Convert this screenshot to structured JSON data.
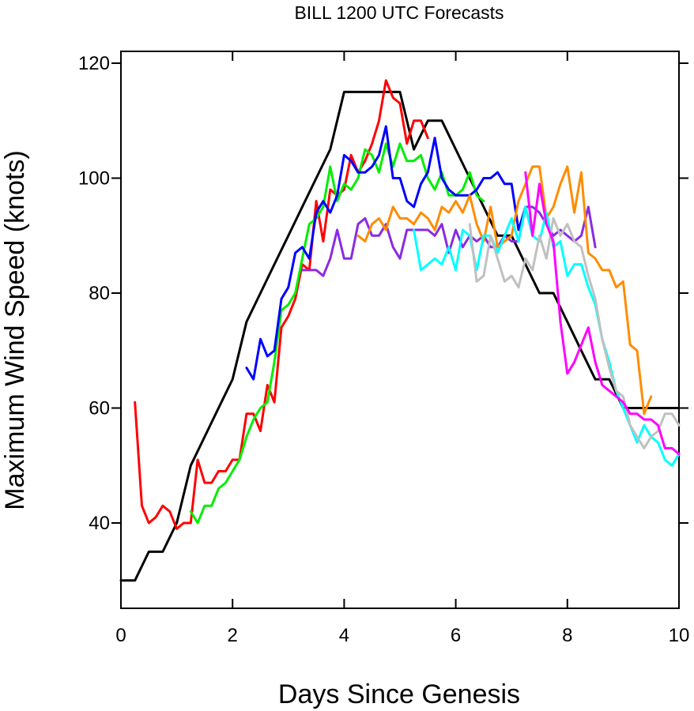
{
  "chart_data": {
    "type": "line",
    "title": "BILL 1200 UTC Forecasts",
    "xlabel": "Days Since Genesis",
    "ylabel": "Maximum Wind Speed (knots)",
    "xlim": [
      0,
      10
    ],
    "ylim": [
      25,
      122
    ],
    "xticks": [
      0,
      2,
      4,
      6,
      8,
      10
    ],
    "yticks": [
      40,
      60,
      80,
      100,
      120
    ],
    "grid": false,
    "legend": "none",
    "series": [
      {
        "color": "#000000",
        "x": [
          0,
          0.25,
          0.5,
          0.75,
          1.0,
          1.25,
          1.5,
          1.75,
          2.0,
          2.25,
          2.5,
          2.75,
          3.0,
          3.25,
          3.5,
          3.75,
          4.0,
          4.25,
          4.5,
          4.75,
          5.0,
          5.25,
          5.5,
          5.75,
          6.0,
          6.25,
          6.5,
          6.75,
          7.0,
          7.25,
          7.5,
          7.75,
          8.0,
          8.25,
          8.5,
          8.75,
          9.0,
          9.25,
          9.5,
          9.75,
          10.0
        ],
        "y": [
          30,
          30,
          35,
          35,
          40,
          50,
          55,
          60,
          65,
          75,
          80,
          85,
          90,
          95,
          100,
          105,
          115,
          115,
          115,
          115,
          115,
          105,
          110,
          110,
          105,
          100,
          95,
          90,
          90,
          85,
          80,
          80,
          75,
          70,
          65,
          65,
          60,
          60,
          60,
          60,
          60
        ]
      },
      {
        "color": "#ff0000",
        "x": [
          0.25,
          0.375,
          0.5,
          0.625,
          0.75,
          0.875,
          1.0,
          1.125,
          1.25,
          1.375,
          1.5,
          1.625,
          1.75,
          1.875,
          2.0,
          2.125,
          2.25,
          2.375,
          2.5,
          2.625,
          2.75,
          2.875,
          3.0,
          3.125,
          3.25,
          3.375,
          3.5,
          3.625,
          3.75,
          3.875,
          4.0,
          4.125,
          4.25,
          4.375,
          4.5,
          4.625,
          4.75,
          4.875,
          5.0,
          5.125,
          5.25,
          5.375,
          5.5
        ],
        "y": [
          61,
          43,
          40,
          41,
          43,
          42,
          39,
          40,
          40,
          51,
          47,
          47,
          49,
          49,
          51,
          51,
          59,
          59,
          56,
          64,
          61,
          74,
          76,
          79,
          85,
          84,
          96,
          89,
          98,
          97,
          98,
          104,
          101,
          103,
          106,
          110,
          117,
          114,
          113,
          106,
          110,
          110,
          107
        ]
      },
      {
        "color": "#00ee00",
        "x": [
          1.25,
          1.375,
          1.5,
          1.625,
          1.75,
          1.875,
          2.0,
          2.125,
          2.25,
          2.375,
          2.5,
          2.625,
          2.75,
          2.875,
          3.0,
          3.125,
          3.25,
          3.375,
          3.5,
          3.625,
          3.75,
          3.875,
          4.0,
          4.125,
          4.25,
          4.375,
          4.5,
          4.625,
          4.75,
          4.875,
          5.0,
          5.125,
          5.25,
          5.375,
          5.5,
          5.625,
          5.75,
          5.875,
          6.0,
          6.125,
          6.25,
          6.375,
          6.5
        ],
        "y": [
          42,
          40,
          43,
          43,
          46,
          47,
          49,
          51,
          55,
          58,
          60,
          61,
          68,
          77,
          78,
          80,
          86,
          92,
          93,
          95,
          102,
          96,
          99,
          98,
          100,
          105,
          104,
          101,
          106,
          102,
          106,
          103,
          103,
          104,
          100,
          98,
          101,
          97,
          97,
          98,
          101,
          97,
          96
        ]
      },
      {
        "color": "#0000ff",
        "x": [
          2.25,
          2.375,
          2.5,
          2.625,
          2.75,
          2.875,
          3.0,
          3.125,
          3.25,
          3.375,
          3.5,
          3.625,
          3.75,
          3.875,
          4.0,
          4.125,
          4.25,
          4.375,
          4.5,
          4.625,
          4.75,
          4.875,
          5.0,
          5.125,
          5.25,
          5.375,
          5.5,
          5.625,
          5.75,
          5.875,
          6.0,
          6.125,
          6.25,
          6.375,
          6.5,
          6.625,
          6.75,
          6.875,
          7.0,
          7.125,
          7.25
        ],
        "y": [
          67,
          65,
          72,
          69,
          70,
          79,
          81,
          87,
          88,
          86,
          94,
          96,
          94,
          97,
          104,
          103,
          101,
          101,
          102,
          104,
          109,
          100,
          100,
          96,
          95,
          99,
          101,
          107,
          100,
          98,
          97,
          97,
          97,
          98,
          100,
          100,
          101,
          99,
          99,
          91,
          95
        ]
      },
      {
        "color": "#8a2be2",
        "x": [
          3.25,
          3.375,
          3.5,
          3.625,
          3.75,
          3.875,
          4.0,
          4.125,
          4.25,
          4.375,
          4.5,
          4.625,
          4.75,
          4.875,
          5.0,
          5.125,
          5.25,
          5.375,
          5.5,
          5.625,
          5.75,
          5.875,
          6.0,
          6.125,
          6.25,
          6.375,
          6.5,
          6.625,
          6.75,
          6.875,
          7.0,
          7.125,
          7.25,
          7.375,
          7.5,
          7.625,
          7.75,
          7.875,
          8.0,
          8.125,
          8.25,
          8.375,
          8.5
        ],
        "y": [
          84,
          84,
          84,
          83,
          86,
          91,
          86,
          86,
          92,
          93,
          90,
          90,
          92,
          88,
          86,
          91,
          91,
          91,
          91,
          90,
          92,
          87,
          91,
          88,
          90,
          89,
          90,
          88,
          88,
          90,
          89,
          89,
          95,
          95,
          94,
          92,
          90,
          91,
          90,
          89,
          90,
          95,
          88
        ]
      },
      {
        "color": "#ff8c00",
        "x": [
          4.25,
          4.375,
          4.5,
          4.625,
          4.75,
          4.875,
          5.0,
          5.125,
          5.25,
          5.375,
          5.5,
          5.625,
          5.75,
          5.875,
          6.0,
          6.125,
          6.25,
          6.375,
          6.5,
          6.625,
          6.75,
          6.875,
          7.0,
          7.125,
          7.25,
          7.375,
          7.5,
          7.625,
          7.75,
          7.875,
          8.0,
          8.125,
          8.25,
          8.375,
          8.5,
          8.625,
          8.75,
          8.875,
          9.0,
          9.125,
          9.25,
          9.375,
          9.5
        ],
        "y": [
          90,
          89,
          92,
          93,
          91,
          95,
          93,
          93,
          92,
          94,
          93,
          91,
          95,
          94,
          96,
          94,
          97,
          92,
          89,
          95,
          88,
          89,
          90,
          96,
          99,
          102,
          102,
          93,
          95,
          99,
          102,
          94,
          101,
          87,
          86,
          84,
          84,
          81,
          82,
          71,
          70,
          59,
          62
        ]
      },
      {
        "color": "#00ffff",
        "x": [
          5.25,
          5.375,
          5.5,
          5.625,
          5.75,
          5.875,
          6.0,
          6.125,
          6.25,
          6.375,
          6.5,
          6.625,
          6.75,
          6.875,
          7.0,
          7.125,
          7.25,
          7.375,
          7.5,
          7.625,
          7.75,
          7.875,
          8.0,
          8.125,
          8.25,
          8.375,
          8.5,
          8.625,
          8.75,
          8.875,
          9.0,
          9.125,
          9.25,
          9.375,
          9.5,
          9.625,
          9.75,
          9.875,
          10.0
        ],
        "y": [
          91,
          84,
          85,
          86,
          85,
          88,
          84,
          91,
          90,
          84,
          90,
          90,
          87,
          90,
          93,
          89,
          95,
          90,
          89,
          94,
          88,
          89,
          83,
          85,
          85,
          81,
          78,
          72,
          68,
          63,
          60,
          57,
          54,
          57,
          55,
          54,
          51,
          50,
          52
        ]
      },
      {
        "color": "#c0c0c0",
        "x": [
          6.25,
          6.375,
          6.5,
          6.625,
          6.75,
          6.875,
          7.0,
          7.125,
          7.25,
          7.375,
          7.5,
          7.625,
          7.75,
          7.875,
          8.0,
          8.125,
          8.25,
          8.375,
          8.5,
          8.625,
          8.75,
          8.875,
          9.0,
          9.125,
          9.25,
          9.375,
          9.5,
          9.625,
          9.75,
          9.875,
          10.0
        ],
        "y": [
          92,
          82,
          83,
          90,
          86,
          82,
          83,
          81,
          86,
          84,
          90,
          86,
          93,
          90,
          92,
          89,
          88,
          83,
          79,
          72,
          67,
          63,
          62,
          57,
          55,
          53,
          55,
          56,
          59,
          59,
          57
        ]
      },
      {
        "color": "#ff00ff",
        "x": [
          7.25,
          7.375,
          7.5,
          7.625,
          7.75,
          7.875,
          8.0,
          8.125,
          8.25,
          8.375,
          8.5,
          8.625,
          8.75,
          8.875,
          9.0,
          9.125,
          9.25,
          9.375,
          9.5,
          9.625,
          9.75,
          9.875,
          10.0
        ],
        "y": [
          101,
          90,
          99,
          92,
          89,
          75,
          66,
          68,
          71,
          74,
          68,
          64,
          63,
          62,
          61,
          59,
          59,
          58,
          58,
          57,
          53,
          53,
          52
        ]
      }
    ]
  }
}
